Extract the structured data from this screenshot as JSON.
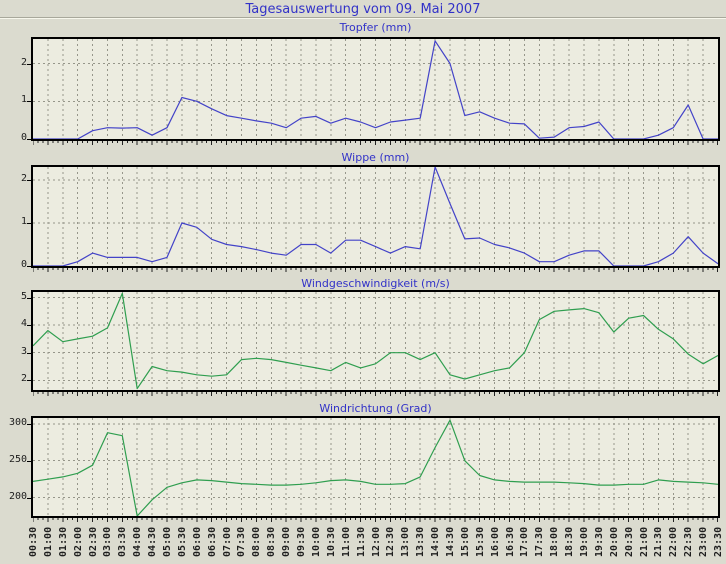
{
  "page": {
    "title": "Tagesauswertung vom 09. Mai 2007"
  },
  "colors": {
    "background": "#dbdbcf",
    "plot_background": "#ecece0",
    "grid": "#96968a",
    "axis": "#000000",
    "title_text": "#3232c8",
    "tick_label": "#1e1e1e",
    "blue_line": "#4343c8",
    "green_line": "#2f9e4f"
  },
  "chart_data": [
    {
      "type": "line",
      "title": "Tropfer (mm)",
      "line_color": "#4343c8",
      "ylim": [
        0,
        2.65
      ],
      "y_ticks": [
        0,
        1,
        2
      ],
      "grid": true,
      "categories": [
        "00:30",
        "01:00",
        "01:30",
        "02:00",
        "02:30",
        "03:00",
        "03:30",
        "04:00",
        "04:30",
        "05:00",
        "05:30",
        "06:00",
        "06:30",
        "07:00",
        "07:30",
        "08:00",
        "08:30",
        "09:00",
        "09:30",
        "10:00",
        "10:30",
        "11:00",
        "11:30",
        "12:00",
        "12:30",
        "13:00",
        "13:30",
        "14:00",
        "14:30",
        "15:00",
        "15:30",
        "16:00",
        "16:30",
        "17:00",
        "17:30",
        "18:00",
        "18:30",
        "19:00",
        "19:30",
        "20:00",
        "20:30",
        "21:00",
        "21:30",
        "22:00",
        "22:30",
        "23:00",
        "23:30"
      ],
      "values": [
        0,
        0,
        0,
        0,
        0.22,
        0.3,
        0.29,
        0.3,
        0.1,
        0.3,
        1.1,
        1.0,
        0.8,
        0.62,
        0.55,
        0.48,
        0.42,
        0.3,
        0.55,
        0.6,
        0.42,
        0.55,
        0.45,
        0.3,
        0.45,
        0.5,
        0.55,
        2.6,
        2.0,
        0.62,
        0.72,
        0.55,
        0.42,
        0.4,
        0.02,
        0.05,
        0.3,
        0.33,
        0.45,
        0,
        0,
        0,
        0.1,
        0.3,
        0.9,
        0,
        0
      ]
    },
    {
      "type": "line",
      "title": "Wippe (mm)",
      "line_color": "#4343c8",
      "ylim": [
        0,
        2.3
      ],
      "y_ticks": [
        0,
        1,
        2
      ],
      "grid": true,
      "categories": [
        "00:30",
        "01:00",
        "01:30",
        "02:00",
        "02:30",
        "03:00",
        "03:30",
        "04:00",
        "04:30",
        "05:00",
        "05:30",
        "06:00",
        "06:30",
        "07:00",
        "07:30",
        "08:00",
        "08:30",
        "09:00",
        "09:30",
        "10:00",
        "10:30",
        "11:00",
        "11:30",
        "12:00",
        "12:30",
        "13:00",
        "13:30",
        "14:00",
        "14:30",
        "15:00",
        "15:30",
        "16:00",
        "16:30",
        "17:00",
        "17:30",
        "18:00",
        "18:30",
        "19:00",
        "19:30",
        "20:00",
        "20:30",
        "21:00",
        "21:30",
        "22:00",
        "22:30",
        "23:00",
        "23:30"
      ],
      "values": [
        0,
        0,
        0,
        0.1,
        0.3,
        0.2,
        0.2,
        0.2,
        0.1,
        0.2,
        1.0,
        0.9,
        0.62,
        0.5,
        0.45,
        0.38,
        0.3,
        0.25,
        0.5,
        0.5,
        0.3,
        0.6,
        0.6,
        0.45,
        0.3,
        0.45,
        0.4,
        2.3,
        1.45,
        0.63,
        0.65,
        0.5,
        0.42,
        0.3,
        0.1,
        0.1,
        0.25,
        0.35,
        0.35,
        0,
        0,
        0,
        0.1,
        0.3,
        0.68,
        0.3,
        0.05
      ]
    },
    {
      "type": "line",
      "title": "Windgeschwindigkeit (m/s)",
      "line_color": "#2f9e4f",
      "ylim": [
        1.65,
        5.2
      ],
      "y_ticks": [
        2,
        3,
        4,
        5
      ],
      "grid": true,
      "categories": [
        "00:30",
        "01:00",
        "01:30",
        "02:00",
        "02:30",
        "03:00",
        "03:30",
        "04:00",
        "04:30",
        "05:00",
        "05:30",
        "06:00",
        "06:30",
        "07:00",
        "07:30",
        "08:00",
        "08:30",
        "09:00",
        "09:30",
        "10:00",
        "10:30",
        "11:00",
        "11:30",
        "12:00",
        "12:30",
        "13:00",
        "13:30",
        "14:00",
        "14:30",
        "15:00",
        "15:30",
        "16:00",
        "16:30",
        "17:00",
        "17:30",
        "18:00",
        "18:30",
        "19:00",
        "19:30",
        "20:00",
        "20:30",
        "21:00",
        "21:30",
        "22:00",
        "22:30",
        "23:00",
        "23:30"
      ],
      "values": [
        3.25,
        3.8,
        3.4,
        3.5,
        3.6,
        3.9,
        5.15,
        1.7,
        2.5,
        2.35,
        2.3,
        2.2,
        2.15,
        2.2,
        2.75,
        2.8,
        2.75,
        2.65,
        2.55,
        2.45,
        2.35,
        2.65,
        2.45,
        2.6,
        3.0,
        3.0,
        2.75,
        3.0,
        2.2,
        2.05,
        2.2,
        2.35,
        2.45,
        3.0,
        4.2,
        4.5,
        4.55,
        4.6,
        4.45,
        3.75,
        4.25,
        4.35,
        3.85,
        3.5,
        2.95,
        2.6,
        2.9
      ]
    },
    {
      "type": "line",
      "title": "Windrichtung (Grad)",
      "line_color": "#2f9e4f",
      "ylim": [
        175,
        308
      ],
      "y_ticks": [
        200,
        250,
        300
      ],
      "grid": true,
      "categories": [
        "00:30",
        "01:00",
        "01:30",
        "02:00",
        "02:30",
        "03:00",
        "03:30",
        "04:00",
        "04:30",
        "05:00",
        "05:30",
        "06:00",
        "06:30",
        "07:00",
        "07:30",
        "08:00",
        "08:30",
        "09:00",
        "09:30",
        "10:00",
        "10:30",
        "11:00",
        "11:30",
        "12:00",
        "12:30",
        "13:00",
        "13:30",
        "14:00",
        "14:30",
        "15:00",
        "15:30",
        "16:00",
        "16:30",
        "17:00",
        "17:30",
        "18:00",
        "18:30",
        "19:00",
        "19:30",
        "20:00",
        "20:30",
        "21:00",
        "21:30",
        "22:00",
        "22:30",
        "23:00",
        "23:30"
      ],
      "values": [
        222,
        225,
        228,
        233,
        244,
        288,
        284,
        175,
        197,
        214,
        220,
        224,
        223,
        221,
        219,
        218,
        217,
        217,
        218,
        220,
        223,
        224,
        222,
        218,
        218,
        219,
        228,
        268,
        305,
        250,
        230,
        224,
        222,
        221,
        221,
        221,
        220,
        219,
        217,
        217,
        218,
        218,
        224,
        222,
        221,
        220,
        218
      ]
    }
  ]
}
